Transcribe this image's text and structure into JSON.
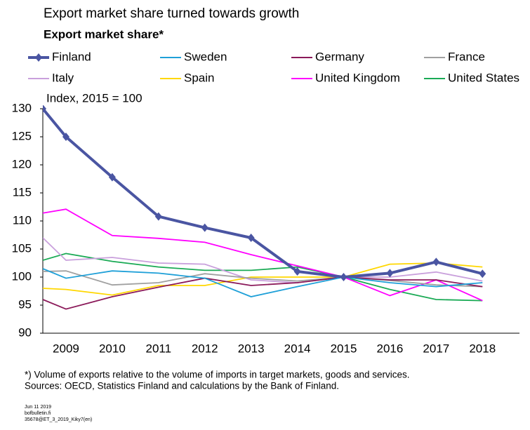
{
  "chart_data": {
    "type": "line",
    "title": "Export market share turned towards growth",
    "subtitle": "Export market share*",
    "y_label": "Index, 2015 = 100",
    "x": [
      2008.5,
      2009,
      2010,
      2011,
      2012,
      2013,
      2014,
      2015,
      2016,
      2017,
      2018
    ],
    "xlim": [
      2008.5,
      2018.8
    ],
    "xticks": [
      2009,
      2010,
      2011,
      2012,
      2013,
      2014,
      2015,
      2016,
      2017,
      2018
    ],
    "ylim": [
      90,
      130
    ],
    "yticks": [
      90,
      95,
      100,
      105,
      110,
      115,
      120,
      125,
      130
    ],
    "grid": false,
    "series": [
      {
        "name": "Finland",
        "color": "#4a55a2",
        "markers": true,
        "values": [
          130,
          125,
          117.8,
          110.8,
          108.8,
          107,
          101,
          100,
          100.7,
          102.7,
          100.6
        ]
      },
      {
        "name": "Sweden",
        "color": "#1fa0d8",
        "values": [
          101.5,
          99.8,
          101.1,
          100.7,
          99.8,
          96.5,
          98.3,
          100,
          99.0,
          98.3,
          99.0
        ]
      },
      {
        "name": "Germany",
        "color": "#8b1a5a",
        "values": [
          96,
          94.3,
          96.5,
          98.2,
          99.8,
          98.5,
          99.0,
          100,
          99.5,
          99.5,
          98.3
        ]
      },
      {
        "name": "France",
        "color": "#a0a0a0",
        "values": [
          101,
          101.1,
          98.6,
          99.0,
          100.6,
          99.8,
          99.3,
          100,
          99.4,
          98.6,
          98.3
        ]
      },
      {
        "name": "Italy",
        "color": "#c9a0dc",
        "values": [
          107,
          103,
          103.5,
          102.5,
          102.3,
          99.5,
          99.0,
          100,
          100,
          100.9,
          99.3
        ]
      },
      {
        "name": "Spain",
        "color": "#ffd700",
        "values": [
          98,
          97.8,
          96.8,
          98.5,
          98.5,
          100,
          100,
          100,
          102.3,
          102.5,
          101.8
        ]
      },
      {
        "name": "United Kingdom",
        "color": "#ff00ff",
        "values": [
          111.4,
          112.1,
          107.4,
          106.9,
          106.2,
          104.0,
          102,
          100,
          96.7,
          99.5,
          95.8
        ]
      },
      {
        "name": "United States",
        "color": "#1aaa55",
        "values": [
          103,
          104.2,
          102.8,
          101.8,
          101.2,
          101.2,
          101.8,
          100,
          97.8,
          96,
          95.8
        ]
      }
    ],
    "footnote": "*) Volume of exports relative to the volume of imports in target markets, goods and services.",
    "sources": "Sources: OECD, Statistics Finland and calculations by the Bank of Finland.",
    "meta": [
      "Jun 11 2019",
      "bofbulletin.fi",
      "35678@ET_3_2019_Kiky7(en)"
    ]
  }
}
